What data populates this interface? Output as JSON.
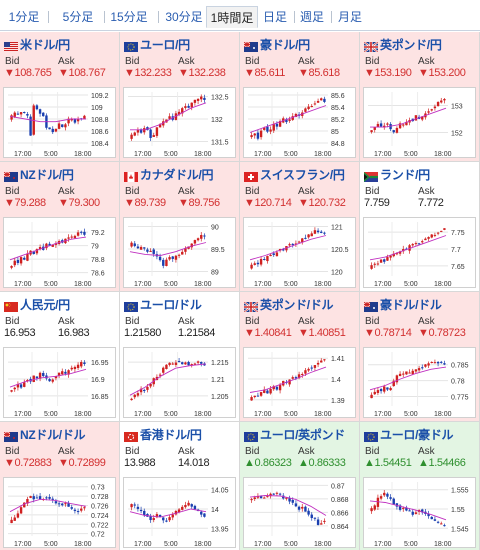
{
  "tabs": [
    "1分足",
    "5分足",
    "15分足",
    "30分足",
    "1時間足",
    "日足",
    "週足",
    "月足"
  ],
  "active_tab": "1時間足",
  "bid_label": "Bid",
  "ask_label": "Ask",
  "x_axis_labels": [
    "17:00",
    "5:00",
    "18:00"
  ],
  "colors": {
    "down_bg": "#fde3e3",
    "up_bg": "#e3f5e3",
    "price_down": "#d23030",
    "price_up": "#2f8f2f",
    "link": "#1a4fa8",
    "candle_up": "#d02020",
    "candle_down": "#1a3fb0",
    "moving_average": "#c030c0"
  },
  "pairs": [
    {
      "name": "米ドル/円",
      "flag": "us-flag-icon",
      "trend": "down",
      "bid": "▼108.765",
      "ask": "▼108.767",
      "yticks": [
        "109.2",
        "109",
        "108.8",
        "108.6",
        "108.4"
      ],
      "ylim": [
        108.35,
        109.25
      ]
    },
    {
      "name": "ユーロ/円",
      "flag": "eu-flag-icon",
      "trend": "down",
      "bid": "▼132.233",
      "ask": "▼132.238",
      "yticks": [
        "132.5",
        "132",
        "131.5"
      ],
      "ylim": [
        131.4,
        132.6
      ]
    },
    {
      "name": "豪ドル/円",
      "flag": "au-flag-icon",
      "trend": "down",
      "bid": "▼85.611",
      "ask": "▼85.618",
      "yticks": [
        "85.6",
        "85.4",
        "85.2",
        "85",
        "84.8"
      ],
      "ylim": [
        84.75,
        85.65
      ]
    },
    {
      "name": "英ポンド/円",
      "flag": "gb-flag-icon",
      "trend": "down",
      "bid": "▼153.190",
      "ask": "▼153.200",
      "yticks": [
        "153",
        "152"
      ],
      "ylim": [
        151.5,
        153.5
      ]
    },
    {
      "name": "NZドル/円",
      "flag": "nz-flag-icon",
      "trend": "down",
      "bid": "▼79.288",
      "ask": "▼79.300",
      "yticks": [
        "79.2",
        "79",
        "78.8",
        "78.6"
      ],
      "ylim": [
        78.55,
        79.35
      ]
    },
    {
      "name": "カナダドル/円",
      "flag": "ca-flag-icon",
      "trend": "down",
      "bid": "▼89.739",
      "ask": "▼89.756",
      "yticks": [
        "90",
        "89.5",
        "89"
      ],
      "ylim": [
        88.9,
        90.1
      ]
    },
    {
      "name": "スイスフラン/円",
      "flag": "ch-flag-icon",
      "trend": "down",
      "bid": "▼120.714",
      "ask": "▼120.732",
      "yticks": [
        "121",
        "120.5",
        "120"
      ],
      "ylim": [
        119.9,
        121.1
      ]
    },
    {
      "name": "ランド/円",
      "flag": "za-flag-icon",
      "trend": "flat",
      "bid": "7.759",
      "ask": "7.772",
      "yticks": [
        "7.75",
        "7.7",
        "7.65"
      ],
      "ylim": [
        7.62,
        7.78
      ]
    },
    {
      "name": "人民元/円",
      "flag": "cn-flag-icon",
      "trend": "flat",
      "bid": "16.953",
      "ask": "16.983",
      "yticks": [
        "16.95",
        "16.9",
        "16.85"
      ],
      "ylim": [
        16.82,
        16.98
      ]
    },
    {
      "name": "ユーロ/ドル",
      "flag": "eu-flag-icon",
      "trend": "flat",
      "bid": "1.21580",
      "ask": "1.21584",
      "yticks": [
        "1.215",
        "1.21",
        "1.205"
      ],
      "ylim": [
        1.202,
        1.218
      ]
    },
    {
      "name": "英ポンド/ドル",
      "flag": "gb-flag-icon",
      "trend": "down",
      "bid": "▼1.40841",
      "ask": "▼1.40851",
      "yticks": [
        "1.41",
        "1.4",
        "1.39"
      ],
      "ylim": [
        1.387,
        1.413
      ]
    },
    {
      "name": "豪ドル/ドル",
      "flag": "au-flag-icon",
      "trend": "down",
      "bid": "▼0.78714",
      "ask": "▼0.78723",
      "yticks": [
        "0.785",
        "0.78",
        "0.775"
      ],
      "ylim": [
        0.772,
        0.789
      ]
    },
    {
      "name": "NZドル/ドル",
      "flag": "nz-flag-icon",
      "trend": "down",
      "bid": "▼0.72883",
      "ask": "▼0.72899",
      "yticks": [
        "0.73",
        "0.728",
        "0.726",
        "0.724",
        "0.722",
        "0.72"
      ],
      "ylim": [
        0.7195,
        0.731
      ]
    },
    {
      "name": "香港ドル/円",
      "flag": "hk-flag-icon",
      "trend": "flat",
      "bid": "13.988",
      "ask": "14.018",
      "yticks": [
        "14.05",
        "14",
        "13.95"
      ],
      "ylim": [
        13.93,
        14.07
      ]
    },
    {
      "name": "ユーロ/英ポンド",
      "flag": "eu-flag-icon",
      "trend": "up",
      "bid": "▲0.86323",
      "ask": "▲0.86333",
      "yticks": [
        "0.87",
        "0.868",
        "0.866",
        "0.864"
      ],
      "ylim": [
        0.8625,
        0.8705
      ]
    },
    {
      "name": "ユーロ/豪ドル",
      "flag": "eu-flag-icon",
      "trend": "up",
      "bid": "▲1.54451",
      "ask": "▲1.54466",
      "yticks": [
        "1.555",
        "1.55",
        "1.545"
      ],
      "ylim": [
        1.543,
        1.557
      ]
    }
  ]
}
